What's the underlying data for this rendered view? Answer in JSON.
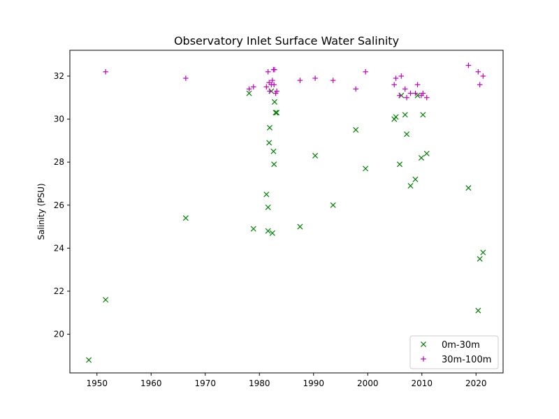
{
  "chart_data": {
    "type": "scatter",
    "title": "Observatory Inlet Surface Water Salinity",
    "xlabel": "",
    "ylabel": "Salinity (PSU)",
    "xlim": [
      1945,
      2025
    ],
    "ylim": [
      18.2,
      33.2
    ],
    "xticks": [
      1950,
      1960,
      1970,
      1980,
      1990,
      2000,
      2010,
      2020
    ],
    "yticks": [
      20,
      22,
      24,
      26,
      28,
      30,
      32
    ],
    "grid": false,
    "legend_position": "bottom-right",
    "series": [
      {
        "name": "0m-30m",
        "marker": "x",
        "color": "#008000",
        "points": [
          [
            1948.5,
            18.8
          ],
          [
            1951.6,
            21.6
          ],
          [
            1966.4,
            25.4
          ],
          [
            1978.1,
            31.2
          ],
          [
            1978.9,
            24.9
          ],
          [
            1981.3,
            26.5
          ],
          [
            1981.6,
            25.9
          ],
          [
            1981.6,
            24.8
          ],
          [
            1981.8,
            28.9
          ],
          [
            1981.9,
            29.6
          ],
          [
            1982.2,
            31.3
          ],
          [
            1982.4,
            24.7
          ],
          [
            1982.6,
            28.5
          ],
          [
            1982.7,
            27.9
          ],
          [
            1982.8,
            30.8
          ],
          [
            1983.0,
            30.3
          ],
          [
            1983.2,
            30.3
          ],
          [
            1987.5,
            25.0
          ],
          [
            1990.3,
            28.3
          ],
          [
            1993.6,
            26.0
          ],
          [
            1997.8,
            29.5
          ],
          [
            1999.6,
            27.7
          ],
          [
            2004.9,
            30.0
          ],
          [
            2005.2,
            30.1
          ],
          [
            2005.9,
            27.9
          ],
          [
            2006.2,
            31.1
          ],
          [
            2006.9,
            30.2
          ],
          [
            2007.2,
            29.3
          ],
          [
            2007.9,
            26.9
          ],
          [
            2008.8,
            27.2
          ],
          [
            2009.2,
            31.1
          ],
          [
            2009.9,
            28.2
          ],
          [
            2010.2,
            30.2
          ],
          [
            2010.9,
            28.4
          ],
          [
            2018.6,
            26.8
          ],
          [
            2020.4,
            21.1
          ],
          [
            2020.7,
            23.5
          ],
          [
            2021.3,
            23.8
          ]
        ]
      },
      {
        "name": "30m-100m",
        "marker": "+",
        "color": "#bf00bf",
        "points": [
          [
            1951.6,
            32.2
          ],
          [
            1966.4,
            31.9
          ],
          [
            1978.1,
            31.4
          ],
          [
            1978.9,
            31.5
          ],
          [
            1981.3,
            31.5
          ],
          [
            1981.6,
            32.2
          ],
          [
            1981.8,
            31.7
          ],
          [
            1981.9,
            31.3
          ],
          [
            1982.2,
            31.6
          ],
          [
            1982.4,
            31.8
          ],
          [
            1982.6,
            32.3
          ],
          [
            1982.7,
            31.6
          ],
          [
            1982.8,
            32.3
          ],
          [
            1983.0,
            31.2
          ],
          [
            1983.2,
            31.3
          ],
          [
            1987.5,
            31.8
          ],
          [
            1990.3,
            31.9
          ],
          [
            1993.6,
            31.8
          ],
          [
            1997.8,
            31.4
          ],
          [
            1999.6,
            32.2
          ],
          [
            2004.9,
            31.6
          ],
          [
            2005.2,
            31.9
          ],
          [
            2005.9,
            31.1
          ],
          [
            2006.2,
            32.0
          ],
          [
            2006.9,
            31.4
          ],
          [
            2007.2,
            31.0
          ],
          [
            2007.9,
            31.2
          ],
          [
            2008.8,
            31.2
          ],
          [
            2009.2,
            31.6
          ],
          [
            2009.9,
            31.1
          ],
          [
            2010.2,
            31.2
          ],
          [
            2010.9,
            31.0
          ],
          [
            2018.6,
            32.5
          ],
          [
            2020.4,
            32.2
          ],
          [
            2020.7,
            31.6
          ],
          [
            2021.3,
            32.0
          ]
        ]
      }
    ]
  }
}
